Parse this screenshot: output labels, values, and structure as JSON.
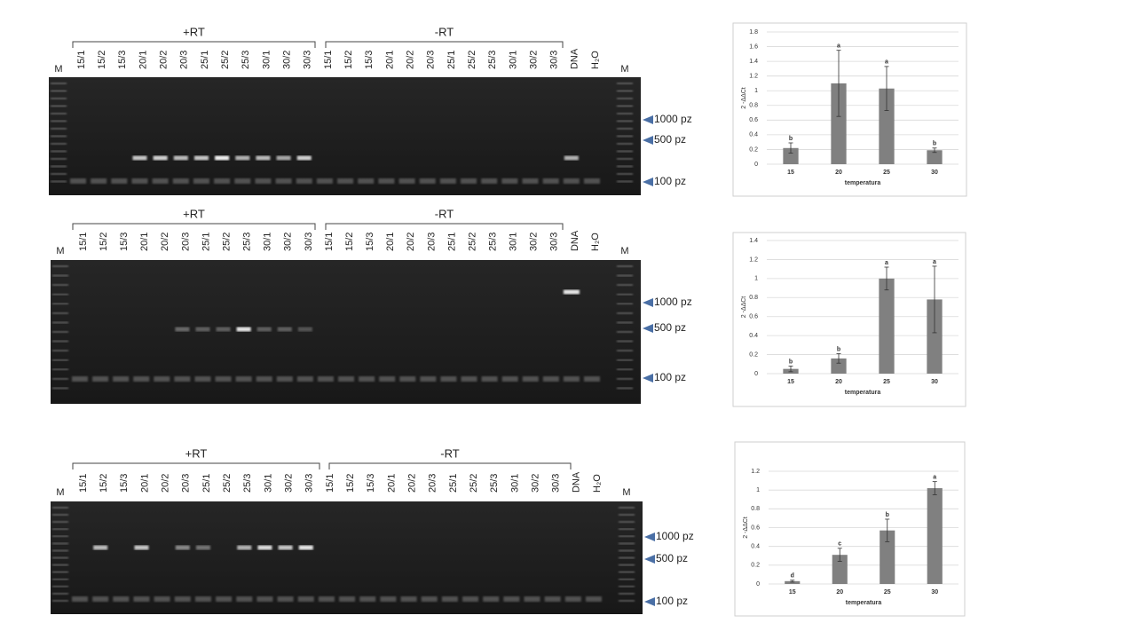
{
  "gels": [
    {
      "groups": [
        "+RT",
        "-RT"
      ],
      "lanes": [
        "M",
        "15/1",
        "15/2",
        "15/3",
        "20/1",
        "20/2",
        "20/3",
        "25/1",
        "25/2",
        "25/3",
        "30/1",
        "30/2",
        "30/3",
        "15/1",
        "15/2",
        "15/3",
        "20/1",
        "20/2",
        "20/3",
        "25/1",
        "25/2",
        "25/3",
        "30/1",
        "30/2",
        "30/3",
        "DNA",
        "H₂O",
        "M"
      ],
      "markers": [
        "1000 pz",
        "500 pz",
        "100 pz"
      ]
    },
    {
      "groups": [
        "+RT",
        "-RT"
      ],
      "lanes": [
        "M",
        "15/1",
        "15/2",
        "15/3",
        "20/1",
        "20/2",
        "20/3",
        "25/1",
        "25/2",
        "25/3",
        "30/1",
        "30/2",
        "30/3",
        "15/1",
        "15/2",
        "15/3",
        "20/1",
        "20/2",
        "20/3",
        "25/1",
        "25/2",
        "25/3",
        "30/1",
        "30/2",
        "30/3",
        "DNA",
        "H₂O",
        "M"
      ],
      "markers": [
        "1000 pz",
        "500 pz",
        "100 pz"
      ]
    },
    {
      "groups": [
        "+RT",
        "-RT"
      ],
      "lanes": [
        "M",
        "15/1",
        "15/2",
        "15/3",
        "20/1",
        "20/2",
        "20/3",
        "25/1",
        "25/2",
        "25/3",
        "30/1",
        "30/2",
        "30/3",
        "15/1",
        "15/2",
        "15/3",
        "20/1",
        "20/2",
        "20/3",
        "25/1",
        "25/2",
        "25/3",
        "30/1",
        "30/2",
        "30/3",
        "DNA",
        "H₂O",
        "M"
      ],
      "markers": [
        "1000 pz",
        "500 pz",
        "100 pz"
      ]
    }
  ],
  "chart_data": [
    {
      "type": "bar",
      "categories": [
        "15",
        "20",
        "25",
        "30"
      ],
      "values": [
        0.22,
        1.1,
        1.03,
        0.19
      ],
      "errors": [
        0.07,
        0.45,
        0.3,
        0.03
      ],
      "labels": [
        "b",
        "a",
        "a",
        "b"
      ],
      "color": "#808080",
      "x_label": "temperatura",
      "y_label": "2 -ΔΔCt",
      "ylim": [
        0,
        1.8
      ],
      "yticks": [
        0,
        0.2,
        0.4,
        0.6,
        0.8,
        1,
        1.2,
        1.4,
        1.6,
        1.8
      ],
      "grid": true
    },
    {
      "type": "bar",
      "categories": [
        "15",
        "20",
        "25",
        "30"
      ],
      "values": [
        0.05,
        0.16,
        1.0,
        0.78
      ],
      "errors": [
        0.03,
        0.05,
        0.12,
        0.35
      ],
      "labels": [
        "b",
        "b",
        "a",
        "a"
      ],
      "color": "#808080",
      "x_label": "temperatura",
      "y_label": "2 -ΔΔCt",
      "ylim": [
        0,
        1.4
      ],
      "yticks": [
        0,
        0.2,
        0.4,
        0.6,
        0.8,
        1,
        1.2,
        1.4
      ],
      "grid": true
    },
    {
      "type": "bar",
      "categories": [
        "15",
        "20",
        "25",
        "30"
      ],
      "values": [
        0.03,
        0.31,
        0.57,
        1.02
      ],
      "errors": [
        0.01,
        0.07,
        0.12,
        0.07
      ],
      "labels": [
        "d",
        "c",
        "b",
        "a"
      ],
      "color": "#808080",
      "x_label": "temperatura",
      "y_label": "2 -ΔΔCt",
      "ylim": [
        0,
        1.2
      ],
      "yticks": [
        0,
        0.2,
        0.4,
        0.6,
        0.8,
        1,
        1.2
      ],
      "grid": true
    }
  ]
}
